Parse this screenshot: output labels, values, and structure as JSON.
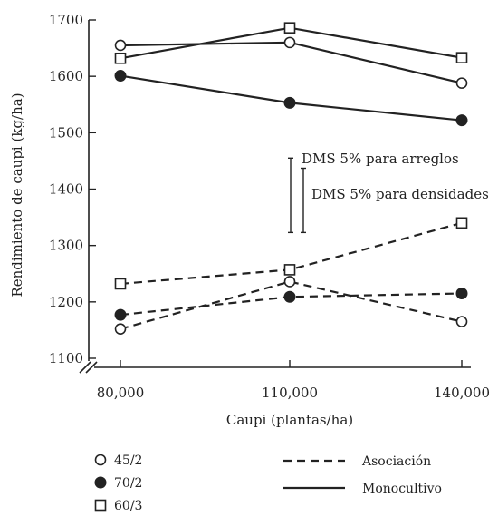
{
  "chart_data": {
    "type": "line",
    "ylabel": "Rendimiento de caupi (kg/ha)",
    "xlabel": "Caupi (plantas/ha)",
    "x": [
      80000,
      110000,
      140000
    ],
    "x_tick_labels": [
      "80,000",
      "110,000",
      "140,000"
    ],
    "y_ticks": [
      1100,
      1200,
      1300,
      1400,
      1500,
      1600,
      1700
    ],
    "ylim": [
      1100,
      1700
    ],
    "y_axis_break": true,
    "grid": false,
    "series": [
      {
        "name": "45/2",
        "marker": "open-circle",
        "system": "Monocultivo",
        "values": [
          1655,
          1660,
          1588
        ]
      },
      {
        "name": "60/3",
        "marker": "open-square",
        "system": "Monocultivo",
        "values": [
          1632,
          1686,
          1633
        ]
      },
      {
        "name": "70/2",
        "marker": "filled-circle",
        "system": "Monocultivo",
        "values": [
          1601,
          1553,
          1522
        ]
      },
      {
        "name": "60/3",
        "marker": "open-square",
        "system": "Asociación",
        "values": [
          1232,
          1257,
          1340
        ]
      },
      {
        "name": "45/2",
        "marker": "open-circle",
        "system": "Asociación",
        "values": [
          1152,
          1236,
          1165
        ]
      },
      {
        "name": "70/2",
        "marker": "filled-circle",
        "system": "Asociación",
        "values": [
          1177,
          1209,
          1215
        ]
      }
    ],
    "annotations": [
      {
        "text": "DMS 5% para arreglos",
        "y_low": 1323,
        "y_high": 1455
      },
      {
        "text": "DMS 5% para densidades",
        "y_low": 1323,
        "y_high": 1437
      }
    ],
    "legend": {
      "placement": "bottom",
      "markers": [
        {
          "label": "45/2",
          "marker": "open-circle"
        },
        {
          "label": "70/2",
          "marker": "filled-circle"
        },
        {
          "label": "60/3",
          "marker": "open-square"
        }
      ],
      "lines": [
        {
          "label": "Asociación",
          "style": "dashed"
        },
        {
          "label": "Monocultivo",
          "style": "solid"
        }
      ]
    }
  }
}
